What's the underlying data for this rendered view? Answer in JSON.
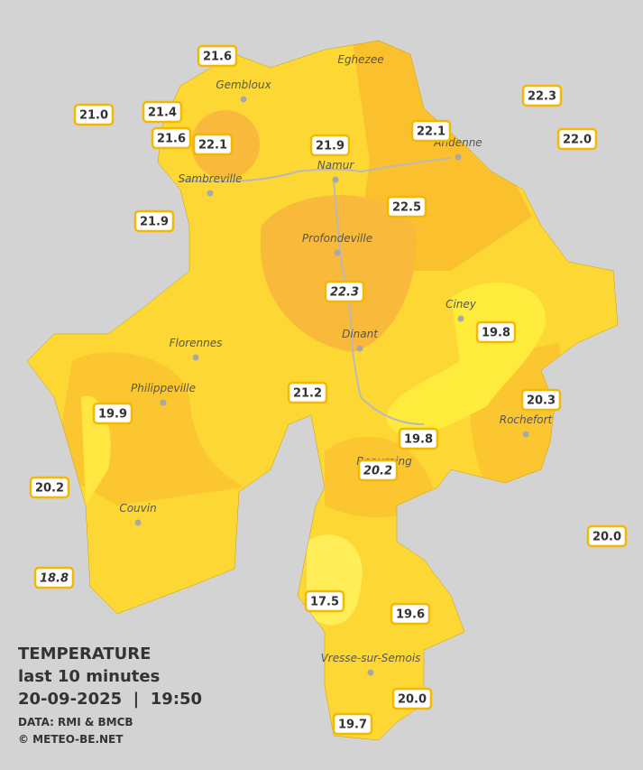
{
  "legend": {
    "title": "TEMPERATURE",
    "subtitle": "last 10 minutes",
    "timestamp": "20-09-2025  |  19:50",
    "source": "DATA: RMI & BMCB",
    "copyright": "© METEO-BE.NET"
  },
  "cities": [
    "Eghezee",
    "Gembloux",
    "Andenne",
    "Namur",
    "Sambreville",
    "Profondeville",
    "Ciney",
    "Dinant",
    "Florennes",
    "Philippeville",
    "Rochefort",
    "Beauraing",
    "Couvin",
    "Vresse-sur-Semois"
  ],
  "stations": [
    {
      "temp": "21.6"
    },
    {
      "temp": "21.0"
    },
    {
      "temp": "21.4"
    },
    {
      "temp": "21.6"
    },
    {
      "temp": "22.1"
    },
    {
      "temp": "21.9"
    },
    {
      "temp": "22.1"
    },
    {
      "temp": "22.3"
    },
    {
      "temp": "22.0"
    },
    {
      "temp": "22.5"
    },
    {
      "temp": "21.9"
    },
    {
      "temp": "22.3",
      "italic": true
    },
    {
      "temp": "19.8"
    },
    {
      "temp": "21.2"
    },
    {
      "temp": "20.3"
    },
    {
      "temp": "19.9"
    },
    {
      "temp": "19.8"
    },
    {
      "temp": "20.2",
      "italic": true
    },
    {
      "temp": "20.2"
    },
    {
      "temp": "20.0"
    },
    {
      "temp": "18.8",
      "italic": true
    },
    {
      "temp": "17.5"
    },
    {
      "temp": "19.6"
    },
    {
      "temp": "20.0"
    },
    {
      "temp": "19.7"
    }
  ]
}
